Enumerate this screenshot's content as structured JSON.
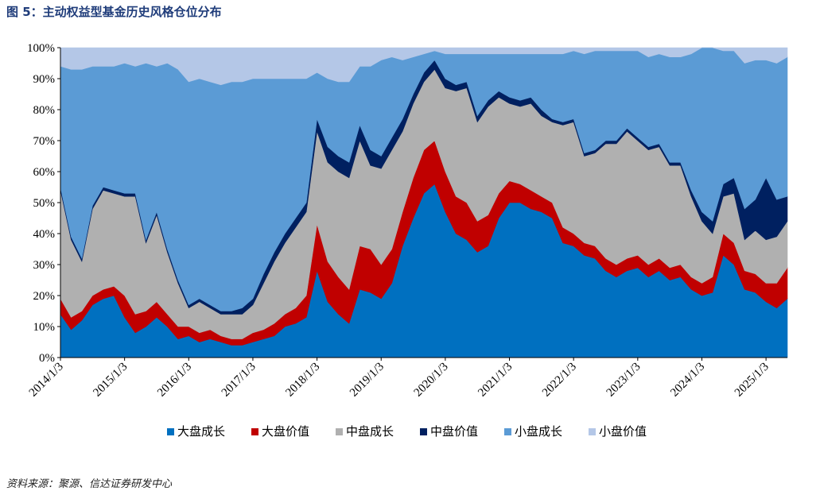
{
  "figure": {
    "title": "图 5：主动权益型基金历史风格仓位分布",
    "source": "资料来源：聚源、信达证券研发中心"
  },
  "chart_data": {
    "type": "area",
    "stacked": true,
    "title": "图 5：主动权益型基金历史风格仓位分布",
    "xlabel": "",
    "ylabel": "",
    "ylim": [
      0,
      100
    ],
    "y_unit": "%",
    "y_ticks": [
      "0%",
      "10%",
      "20%",
      "30%",
      "40%",
      "50%",
      "60%",
      "70%",
      "80%",
      "90%",
      "100%"
    ],
    "x_ticks": [
      "2014/1/3",
      "2015/1/3",
      "2016/1/3",
      "2017/1/3",
      "2018/1/3",
      "2019/1/3",
      "2020/1/3",
      "2021/1/3",
      "2022/1/3",
      "2023/1/3",
      "2024/1/3",
      "2025/1/3"
    ],
    "legend_position": "bottom",
    "x": [
      "2014/1/3",
      "2014/3/1",
      "2014/5/1",
      "2014/7/1",
      "2014/9/1",
      "2014/11/1",
      "2015/1/3",
      "2015/3/1",
      "2015/5/1",
      "2015/7/1",
      "2015/9/1",
      "2015/11/1",
      "2016/1/3",
      "2016/3/1",
      "2016/5/1",
      "2016/7/1",
      "2016/9/1",
      "2016/11/1",
      "2017/1/3",
      "2017/3/1",
      "2017/5/1",
      "2017/7/1",
      "2017/9/1",
      "2017/11/1",
      "2018/1/3",
      "2018/3/1",
      "2018/5/1",
      "2018/7/1",
      "2018/9/1",
      "2018/11/1",
      "2019/1/3",
      "2019/3/1",
      "2019/5/1",
      "2019/7/1",
      "2019/9/1",
      "2019/11/1",
      "2020/1/3",
      "2020/3/1",
      "2020/5/1",
      "2020/7/1",
      "2020/9/1",
      "2020/11/1",
      "2021/1/3",
      "2021/3/1",
      "2021/5/1",
      "2021/7/1",
      "2021/9/1",
      "2021/11/1",
      "2022/1/3",
      "2022/3/1",
      "2022/5/1",
      "2022/7/1",
      "2022/9/1",
      "2022/11/1",
      "2023/1/3",
      "2023/3/1",
      "2023/5/1",
      "2023/7/1",
      "2023/9/1",
      "2023/11/1",
      "2024/1/3",
      "2024/3/1",
      "2024/5/1",
      "2024/7/1",
      "2024/9/1",
      "2024/11/1",
      "2025/1/3",
      "2025/3/1",
      "2025/5/1"
    ],
    "series": [
      {
        "name": "大盘成长",
        "color": "#0070C0",
        "values": [
          14,
          9,
          12,
          17,
          19,
          20,
          13,
          8,
          10,
          13,
          10,
          6,
          7,
          5,
          6,
          5,
          4,
          4,
          5,
          6,
          7,
          10,
          11,
          13,
          28,
          18,
          14,
          11,
          22,
          21,
          19,
          24,
          36,
          45,
          53,
          56,
          47,
          40,
          38,
          34,
          36,
          45,
          50,
          50,
          48,
          47,
          45,
          37,
          36,
          33,
          32,
          28,
          26,
          28,
          29,
          26,
          28,
          25,
          26,
          22,
          20,
          21,
          33,
          30,
          22,
          21,
          18,
          16,
          19
        ]
      },
      {
        "name": "大盘价值",
        "color": "#C00000",
        "values": [
          5,
          4,
          3,
          3,
          3,
          3,
          7,
          6,
          5,
          5,
          4,
          4,
          3,
          3,
          3,
          2,
          2,
          2,
          3,
          3,
          4,
          4,
          5,
          7,
          15,
          13,
          12,
          11,
          14,
          14,
          11,
          11,
          11,
          13,
          14,
          14,
          13,
          12,
          12,
          10,
          10,
          8,
          7,
          6,
          6,
          5,
          5,
          5,
          4,
          4,
          4,
          4,
          4,
          4,
          4,
          4,
          4,
          4,
          4,
          4,
          4,
          5,
          7,
          7,
          6,
          6,
          6,
          8,
          10
        ]
      },
      {
        "name": "中盘成长",
        "color": "#B0B0B0",
        "values": [
          35,
          25,
          16,
          28,
          32,
          30,
          32,
          38,
          22,
          28,
          20,
          14,
          6,
          10,
          7,
          7,
          8,
          8,
          9,
          15,
          20,
          23,
          26,
          27,
          30,
          32,
          34,
          36,
          34,
          27,
          31,
          32,
          26,
          24,
          22,
          23,
          27,
          34,
          37,
          32,
          35,
          31,
          25,
          25,
          28,
          26,
          26,
          33,
          36,
          28,
          30,
          37,
          39,
          41,
          37,
          37,
          36,
          33,
          32,
          26,
          20,
          14,
          12,
          16,
          10,
          14,
          14,
          15,
          15
        ]
      },
      {
        "name": "中盘价值",
        "color": "#002060",
        "values": [
          1,
          1,
          1,
          1,
          1,
          1,
          1,
          1,
          1,
          1,
          1,
          1,
          1,
          1,
          1,
          1,
          1,
          2,
          2,
          3,
          3,
          3,
          3,
          3,
          4,
          5,
          5,
          5,
          5,
          5,
          4,
          4,
          4,
          3,
          3,
          3,
          3,
          2,
          2,
          2,
          2,
          2,
          2,
          2,
          2,
          2,
          1,
          1,
          1,
          1,
          1,
          1,
          1,
          1,
          1,
          1,
          1,
          1,
          1,
          2,
          3,
          4,
          4,
          5,
          10,
          10,
          20,
          12,
          8
        ]
      },
      {
        "name": "小盘成长",
        "color": "#5B9BD5",
        "values": [
          39,
          54,
          61,
          45,
          39,
          40,
          42,
          41,
          57,
          47,
          60,
          68,
          72,
          71,
          72,
          73,
          74,
          73,
          71,
          63,
          56,
          50,
          45,
          40,
          15,
          22,
          24,
          26,
          19,
          27,
          31,
          26,
          19,
          12,
          6,
          3,
          8,
          10,
          9,
          20,
          15,
          12,
          14,
          15,
          14,
          18,
          21,
          22,
          22,
          32,
          32,
          29,
          29,
          25,
          28,
          29,
          29,
          34,
          34,
          44,
          53,
          56,
          43,
          41,
          47,
          45,
          38,
          44,
          45
        ]
      },
      {
        "name": "小盘价值",
        "color": "#B4C7E7",
        "values": [
          6,
          7,
          7,
          6,
          6,
          6,
          5,
          6,
          5,
          6,
          5,
          7,
          11,
          10,
          11,
          12,
          11,
          11,
          10,
          10,
          10,
          10,
          10,
          10,
          8,
          10,
          11,
          11,
          6,
          6,
          4,
          3,
          4,
          3,
          2,
          1,
          2,
          2,
          2,
          2,
          2,
          2,
          2,
          2,
          2,
          2,
          2,
          2,
          1,
          2,
          1,
          1,
          1,
          1,
          1,
          3,
          2,
          3,
          3,
          2,
          0,
          0,
          1,
          1,
          5,
          4,
          4,
          5,
          3
        ]
      }
    ]
  }
}
